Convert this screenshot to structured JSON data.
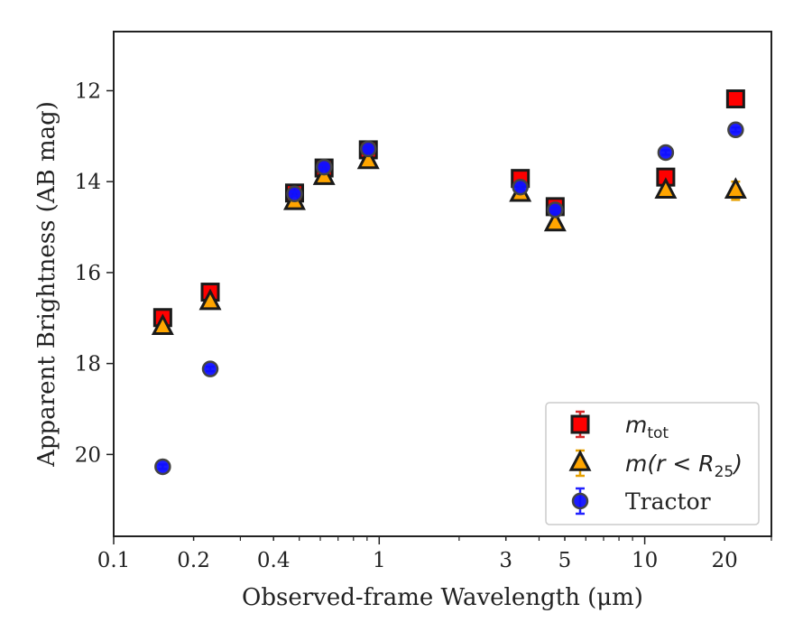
{
  "chart_data": {
    "type": "scatter",
    "title": "",
    "xlabel": "Observed-frame Wavelength (μm)",
    "ylabel": "Apparent Brightness (AB mag)",
    "xscale": "log",
    "yscale": "linear",
    "y_inverted": true,
    "xlim": [
      0.1,
      30
    ],
    "ylim": [
      21.8,
      10.7
    ],
    "xticks": [
      {
        "value": 0.1,
        "label": "0.1"
      },
      {
        "value": 0.2,
        "label": "0.2"
      },
      {
        "value": 0.4,
        "label": "0.4"
      },
      {
        "value": 1,
        "label": "1"
      },
      {
        "value": 3,
        "label": "3"
      },
      {
        "value": 5,
        "label": "5"
      },
      {
        "value": 10,
        "label": "10"
      },
      {
        "value": 20,
        "label": "20"
      }
    ],
    "yticks": [
      {
        "value": 12,
        "label": "12"
      },
      {
        "value": 14,
        "label": "14"
      },
      {
        "value": 16,
        "label": "16"
      },
      {
        "value": 18,
        "label": "18"
      },
      {
        "value": 20,
        "label": "20"
      }
    ],
    "grid": false,
    "legend_position": "lower-right",
    "series": [
      {
        "name": "m_tot",
        "legend_main": "m",
        "legend_sub": "tot",
        "marker": "square",
        "color": "#ff0000",
        "errorbar_color": "#d62728",
        "points": [
          {
            "x": 0.153,
            "y": 16.99,
            "err": 0.05
          },
          {
            "x": 0.231,
            "y": 16.43,
            "err": 0.05
          },
          {
            "x": 0.48,
            "y": 14.25,
            "err": 0.05
          },
          {
            "x": 0.62,
            "y": 13.7,
            "err": 0.05
          },
          {
            "x": 0.91,
            "y": 13.3,
            "err": 0.05
          },
          {
            "x": 3.4,
            "y": 13.93,
            "err": 0.05
          },
          {
            "x": 4.6,
            "y": 14.55,
            "err": 0.05
          },
          {
            "x": 12.0,
            "y": 13.9,
            "err": 0.05
          },
          {
            "x": 22.0,
            "y": 12.18,
            "err": 0.05
          }
        ]
      },
      {
        "name": "m(r < R_25)",
        "legend_main": "m(r < R",
        "legend_sub": "25",
        "legend_tail": ")",
        "marker": "triangle",
        "color": "#ffa500",
        "errorbar_color": "#e6a000",
        "points": [
          {
            "x": 0.153,
            "y": 17.2,
            "err": 0.05
          },
          {
            "x": 0.231,
            "y": 16.65,
            "err": 0.05
          },
          {
            "x": 0.48,
            "y": 14.45,
            "err": 0.05
          },
          {
            "x": 0.62,
            "y": 13.9,
            "err": 0.05
          },
          {
            "x": 0.91,
            "y": 13.55,
            "err": 0.05
          },
          {
            "x": 3.4,
            "y": 14.27,
            "err": 0.05
          },
          {
            "x": 4.6,
            "y": 14.92,
            "err": 0.05
          },
          {
            "x": 12.0,
            "y": 14.2,
            "err": 0.05
          },
          {
            "x": 22.0,
            "y": 14.2,
            "err": 0.2
          }
        ]
      },
      {
        "name": "Tractor",
        "legend_main": "Tractor",
        "marker": "circle",
        "color": "#1010ff",
        "errorbar_color": "#2222ff",
        "points": [
          {
            "x": 0.153,
            "y": 20.27,
            "err": 0.05
          },
          {
            "x": 0.231,
            "y": 18.12,
            "err": 0.05
          },
          {
            "x": 0.48,
            "y": 14.27,
            "err": 0.05
          },
          {
            "x": 0.62,
            "y": 13.68,
            "err": 0.05
          },
          {
            "x": 0.91,
            "y": 13.28,
            "err": 0.05
          },
          {
            "x": 3.4,
            "y": 14.12,
            "err": 0.05
          },
          {
            "x": 4.6,
            "y": 14.62,
            "err": 0.05
          },
          {
            "x": 12.0,
            "y": 13.36,
            "err": 0.05
          },
          {
            "x": 22.0,
            "y": 12.86,
            "err": 0.05
          }
        ]
      }
    ]
  }
}
